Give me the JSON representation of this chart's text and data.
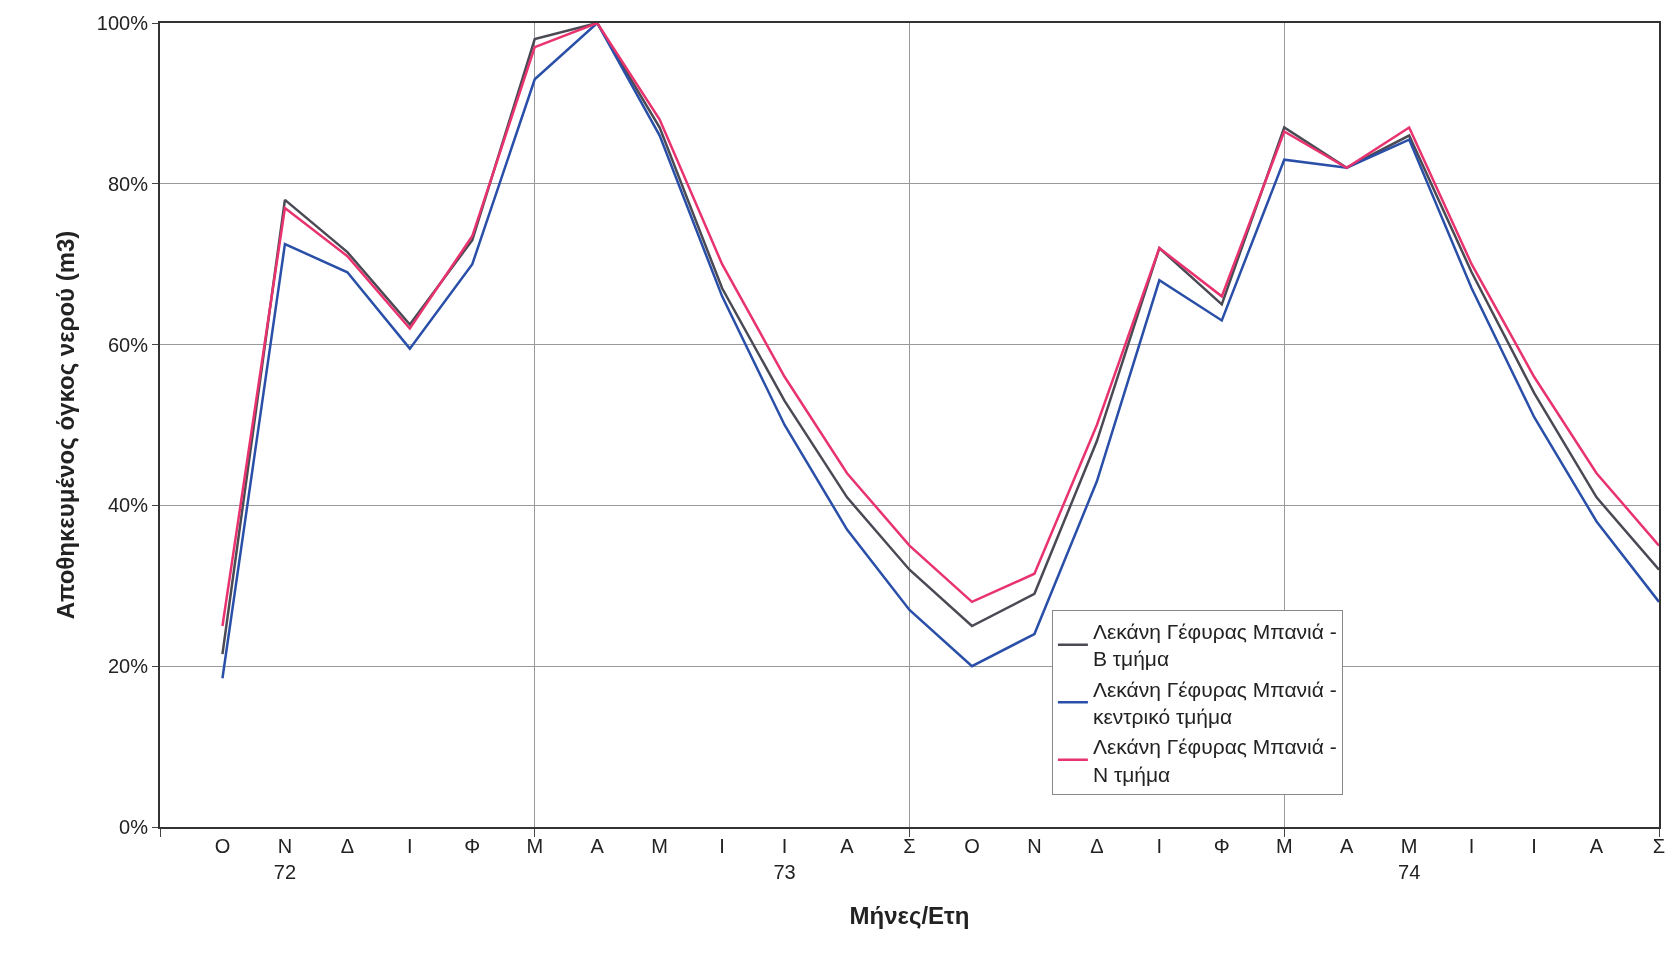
{
  "chart_data": {
    "type": "line",
    "xlabel": "Μήνες/Ετη",
    "ylabel": "Αποθηκευμένος όγκος νερού (m3)",
    "categories": [
      "Ο",
      "Ν\n72",
      "Δ",
      "Ι",
      "Φ",
      "Μ",
      "Α",
      "Μ",
      "Ι",
      "Ι\n73",
      "Α",
      "Σ",
      "Ο",
      "Ν",
      "Δ",
      "Ι",
      "Φ",
      "Μ",
      "Α",
      "Μ\n74",
      "Ι",
      "Ι",
      "Α",
      "Σ"
    ],
    "series": [
      {
        "name": "Λεκάνη Γέφυρας Μπανιά - Β τμήμα",
        "color": "#4a4a55",
        "values": [
          21.5,
          78,
          71.5,
          62.5,
          73,
          98,
          100,
          87,
          67,
          53,
          41,
          32,
          25,
          29,
          48,
          72,
          65,
          87,
          82,
          86,
          69,
          54,
          41,
          32
        ]
      },
      {
        "name": "Λεκάνη Γέφυρας Μπανιά - κεντρικό τμήμα",
        "color": "#2a4fa8",
        "values": [
          18.5,
          72.5,
          69,
          59.5,
          70,
          93,
          100,
          86,
          66,
          50,
          37,
          27,
          20,
          24,
          43,
          68,
          63,
          83,
          82,
          85.5,
          67,
          51,
          38,
          28
        ]
      },
      {
        "name": "Λεκάνη Γέφυρας Μπανιά - Ν τμήμα",
        "color": "#e8336e",
        "values": [
          25,
          77,
          71,
          62,
          73.5,
          97,
          100,
          88,
          70,
          56,
          44,
          35,
          28,
          31.5,
          50,
          72,
          66,
          86.5,
          82,
          87,
          70,
          56,
          44,
          35
        ]
      }
    ],
    "ylim": [
      0,
      100
    ],
    "yticks": [
      {
        "value": 0,
        "label": "0%"
      },
      {
        "value": 20,
        "label": "20%"
      },
      {
        "value": 40,
        "label": "40%"
      },
      {
        "value": 60,
        "label": "60%"
      },
      {
        "value": 80,
        "label": "80%"
      },
      {
        "value": 100,
        "label": "100%"
      }
    ],
    "grid": true,
    "legend": "bottom right",
    "marker": "none",
    "line_style": "solid"
  }
}
